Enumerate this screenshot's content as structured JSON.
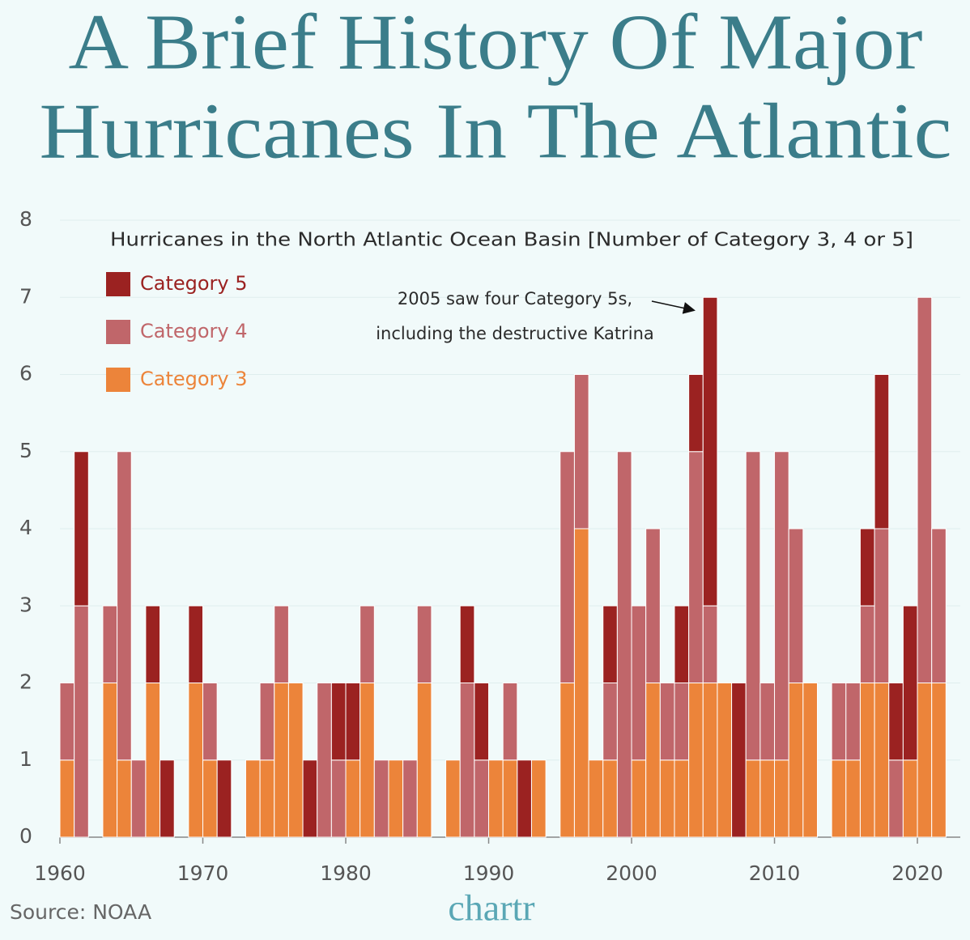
{
  "chart_data": {
    "type": "bar",
    "title": [
      "A Brief History Of Major",
      "Hurricanes In The Atlantic"
    ],
    "subtitle": "Hurricanes in the North Atlantic Ocean Basin [Number of Category 3, 4 or 5]",
    "annotation": [
      "2005 saw four Category 5s,",
      "including the destructive Katrina"
    ],
    "source": "Source: NOAA",
    "brand": "chartr",
    "stacked": true,
    "grid": true,
    "legend": "upper left",
    "x": [
      1960,
      1961,
      1962,
      1963,
      1964,
      1965,
      1966,
      1967,
      1968,
      1969,
      1970,
      1971,
      1972,
      1973,
      1974,
      1975,
      1976,
      1977,
      1978,
      1979,
      1980,
      1981,
      1982,
      1983,
      1984,
      1985,
      1986,
      1987,
      1988,
      1989,
      1990,
      1991,
      1992,
      1993,
      1994,
      1995,
      1996,
      1997,
      1998,
      1999,
      2000,
      2001,
      2002,
      2003,
      2004,
      2005,
      2006,
      2007,
      2008,
      2009,
      2010,
      2011,
      2012,
      2013,
      2014,
      2015,
      2016,
      2017,
      2018,
      2019,
      2020,
      2021
    ],
    "series": [
      {
        "name": "Category 3",
        "color": "#ec843a",
        "values": [
          1,
          0,
          0,
          2,
          1,
          0,
          2,
          0,
          0,
          2,
          1,
          0,
          0,
          1,
          1,
          2,
          2,
          0,
          0,
          0,
          1,
          2,
          0,
          1,
          0,
          2,
          0,
          1,
          0,
          0,
          1,
          1,
          0,
          1,
          0,
          2,
          4,
          1,
          1,
          0,
          1,
          2,
          1,
          1,
          2,
          2,
          2,
          0,
          1,
          1,
          1,
          2,
          2,
          0,
          1,
          1,
          2,
          2,
          0,
          1,
          2,
          2
        ]
      },
      {
        "name": "Category 4",
        "color": "#c0666a",
        "values": [
          1,
          3,
          0,
          1,
          4,
          1,
          0,
          0,
          0,
          0,
          1,
          0,
          0,
          0,
          1,
          1,
          0,
          0,
          2,
          1,
          0,
          1,
          1,
          0,
          1,
          1,
          0,
          0,
          2,
          1,
          0,
          1,
          0,
          0,
          0,
          3,
          2,
          0,
          1,
          5,
          2,
          2,
          1,
          1,
          3,
          1,
          0,
          0,
          4,
          1,
          4,
          2,
          0,
          0,
          1,
          1,
          1,
          2,
          1,
          0,
          5,
          2
        ]
      },
      {
        "name": "Category 5",
        "color": "#9b2221",
        "values": [
          0,
          2,
          0,
          0,
          0,
          0,
          1,
          1,
          0,
          1,
          0,
          1,
          0,
          0,
          0,
          0,
          0,
          1,
          0,
          1,
          1,
          0,
          0,
          0,
          0,
          0,
          0,
          0,
          1,
          1,
          0,
          0,
          1,
          0,
          0,
          0,
          0,
          0,
          1,
          0,
          0,
          0,
          0,
          1,
          1,
          4,
          0,
          2,
          0,
          0,
          0,
          0,
          0,
          0,
          0,
          0,
          1,
          2,
          1,
          2,
          0,
          0
        ]
      }
    ],
    "xlim": [
      1960,
      2023
    ],
    "xticks": [
      1960,
      1970,
      1980,
      1990,
      2000,
      2010,
      2020
    ],
    "ylim": [
      0,
      8
    ],
    "yticks": [
      0,
      1,
      2,
      3,
      4,
      5,
      6,
      7,
      8
    ]
  }
}
